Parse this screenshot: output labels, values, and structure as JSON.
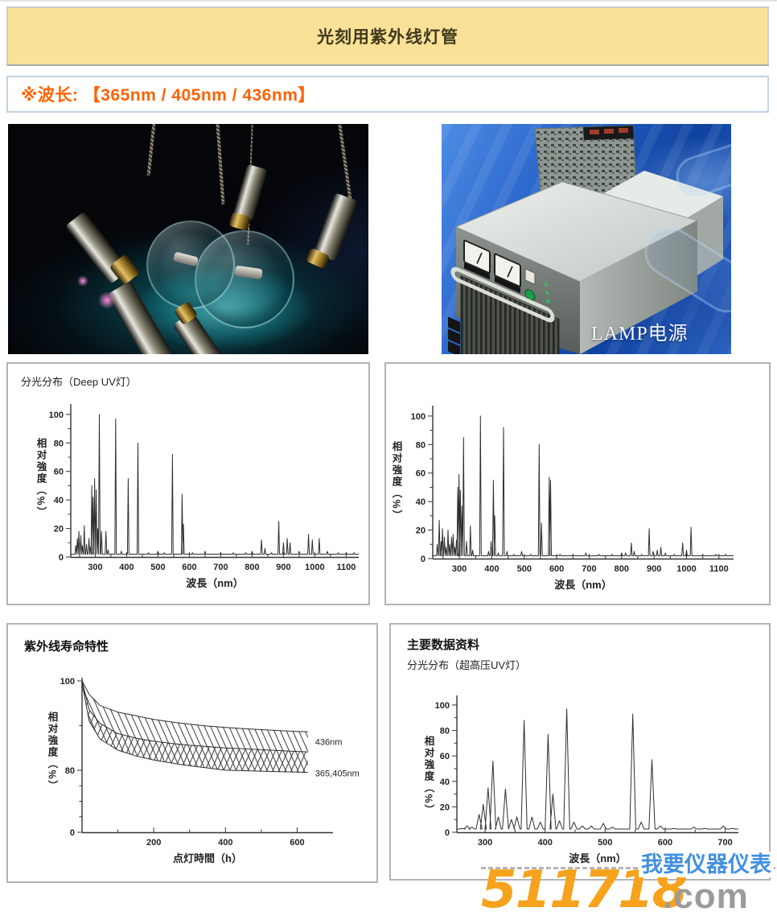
{
  "page": {
    "title": "光刻用紫外线灯管",
    "wavelength_note": "※波长: 【365nm / 405nm / 436nm】"
  },
  "photos": {
    "lamp_photo": "紫外线灯管照片",
    "power_supply_label": "LAMP电源"
  },
  "watermark": {
    "number": "511718",
    "suffix": ".com",
    "tagline": "我要仪器仪表",
    "orange": "#f6a21c",
    "gray": "#9b9b9b",
    "blue": "#4190e0"
  },
  "chart_data": [
    {
      "type": "line",
      "title": "分光分布（Deep UV灯）",
      "xlabel": "波長（nm）",
      "ylabel": "相对強度（%）",
      "xlim": [
        222,
        1140
      ],
      "ylim": [
        0,
        105
      ],
      "xticks": [
        300,
        400,
        500,
        600,
        700,
        800,
        900,
        1000,
        1100
      ],
      "xticks_minor": [
        250,
        350,
        450,
        550,
        650,
        750,
        850,
        950,
        1050
      ],
      "yticks": [
        0,
        20,
        40,
        60,
        80,
        100
      ],
      "yticks_minor": [
        10,
        30,
        50,
        70,
        90
      ],
      "baseline": 2,
      "peak_width": 5,
      "peaks_nm_intensity": [
        [
          238,
          8
        ],
        [
          243,
          13
        ],
        [
          248,
          18
        ],
        [
          254,
          15
        ],
        [
          259,
          8
        ],
        [
          265,
          22
        ],
        [
          272,
          9
        ],
        [
          280,
          13
        ],
        [
          285,
          7
        ],
        [
          289,
          50
        ],
        [
          293,
          42
        ],
        [
          298,
          55
        ],
        [
          303,
          47
        ],
        [
          308,
          20
        ],
        [
          313,
          100
        ],
        [
          320,
          18
        ],
        [
          334,
          18
        ],
        [
          341,
          5
        ],
        [
          365,
          97
        ],
        [
          383,
          4
        ],
        [
          405,
          55
        ],
        [
          436,
          80
        ],
        [
          470,
          3
        ],
        [
          500,
          4
        ],
        [
          520,
          3
        ],
        [
          546,
          72
        ],
        [
          577,
          44
        ],
        [
          581,
          23
        ],
        [
          610,
          3
        ],
        [
          650,
          4
        ],
        [
          700,
          3
        ],
        [
          740,
          3
        ],
        [
          780,
          3
        ],
        [
          800,
          4
        ],
        [
          830,
          12
        ],
        [
          841,
          6
        ],
        [
          862,
          3
        ],
        [
          885,
          25
        ],
        [
          900,
          10
        ],
        [
          912,
          13
        ],
        [
          921,
          10
        ],
        [
          950,
          4
        ],
        [
          980,
          16
        ],
        [
          992,
          12
        ],
        [
          1014,
          13
        ],
        [
          1040,
          4
        ],
        [
          1075,
          3
        ],
        [
          1100,
          3
        ],
        [
          1125,
          3
        ]
      ]
    },
    {
      "type": "line",
      "title": "",
      "xlabel": "波長（nm）",
      "ylabel": "相对強度（%）",
      "xlim": [
        218,
        1145
      ],
      "ylim": [
        0,
        105
      ],
      "xticks": [
        300,
        400,
        500,
        600,
        700,
        800,
        900,
        1000,
        1100
      ],
      "xticks_minor": [
        250,
        350,
        450,
        550,
        650,
        750,
        850,
        950,
        1050
      ],
      "yticks": [
        0,
        20,
        40,
        60,
        80,
        100
      ],
      "yticks_minor": [
        10,
        30,
        50,
        70,
        90
      ],
      "baseline": 2,
      "peak_width": 5,
      "peaks_nm_intensity": [
        [
          232,
          10
        ],
        [
          238,
          27
        ],
        [
          244,
          12
        ],
        [
          248,
          21
        ],
        [
          254,
          15
        ],
        [
          259,
          8
        ],
        [
          265,
          20
        ],
        [
          270,
          10
        ],
        [
          276,
          15
        ],
        [
          281,
          17
        ],
        [
          286,
          8
        ],
        [
          291,
          13
        ],
        [
          295,
          50
        ],
        [
          299,
          59
        ],
        [
          303,
          48
        ],
        [
          308,
          37
        ],
        [
          313,
          85
        ],
        [
          322,
          12
        ],
        [
          334,
          23
        ],
        [
          341,
          6
        ],
        [
          365,
          100
        ],
        [
          390,
          5
        ],
        [
          398,
          12
        ],
        [
          405,
          55
        ],
        [
          409,
          30
        ],
        [
          420,
          4
        ],
        [
          436,
          92
        ],
        [
          447,
          5
        ],
        [
          468,
          3
        ],
        [
          492,
          5
        ],
        [
          520,
          3
        ],
        [
          546,
          80
        ],
        [
          553,
          25
        ],
        [
          577,
          57
        ],
        [
          581,
          55
        ],
        [
          610,
          3
        ],
        [
          650,
          3
        ],
        [
          690,
          4
        ],
        [
          730,
          3
        ],
        [
          770,
          3
        ],
        [
          800,
          4
        ],
        [
          812,
          4
        ],
        [
          830,
          11
        ],
        [
          839,
          5
        ],
        [
          862,
          3
        ],
        [
          885,
          21
        ],
        [
          897,
          5
        ],
        [
          910,
          6
        ],
        [
          921,
          8
        ],
        [
          935,
          4
        ],
        [
          962,
          3
        ],
        [
          988,
          11
        ],
        [
          1000,
          6
        ],
        [
          1014,
          22
        ],
        [
          1050,
          3
        ],
        [
          1090,
          3
        ],
        [
          1120,
          3
        ]
      ]
    },
    {
      "type": "band",
      "title": "紫外线寿命特性",
      "xlabel": "点灯時間（h）",
      "ylabel": "相对強度（%）",
      "xlim": [
        0,
        700
      ],
      "xticks": [
        200,
        400,
        600
      ],
      "xticks_minor": [
        100,
        300,
        500
      ],
      "yticks": [
        100,
        80,
        0
      ],
      "yticks_minor": [
        90,
        60,
        40,
        20
      ],
      "y_compression": [
        [
          100,
          0
        ],
        [
          80,
          0.59
        ],
        [
          0,
          1
        ]
      ],
      "x": [
        0,
        20,
        50,
        100,
        150,
        200,
        250,
        300,
        350,
        400,
        450,
        500,
        550,
        600,
        630
      ],
      "series": [
        {
          "name": "436nm band upper",
          "y": [
            100,
            97,
            94.5,
            93,
            92.2,
            91.4,
            90.8,
            90.3,
            89.9,
            89.6,
            89.3,
            89.1,
            88.9,
            88.7,
            88.6
          ]
        },
        {
          "name": "band divider",
          "y": [
            100,
            93.5,
            90.5,
            88.2,
            87.2,
            86.5,
            86,
            85.6,
            85.3,
            85,
            84.8,
            84.6,
            84.4,
            84.2,
            84.1
          ]
        },
        {
          "name": "365,405nm band lower",
          "y": [
            99.5,
            91,
            87,
            84.5,
            83.2,
            82.3,
            81.6,
            81,
            80.5,
            80,
            79.4,
            78.8,
            78.2,
            77.6,
            77.2
          ]
        }
      ],
      "right_labels": [
        {
          "text": "436nm",
          "at": 86.4
        },
        {
          "text": "365,405nm",
          "at": 76.3
        }
      ]
    },
    {
      "type": "line",
      "panel_title": "主要数据资料",
      "title": "分光分布（超高压UV灯）",
      "xlabel": "波長（nm）",
      "ylabel": "相对強度（%）",
      "xlim": [
        253,
        722
      ],
      "ylim": [
        0,
        105
      ],
      "xticks": [
        300,
        400,
        500,
        600,
        700
      ],
      "xticks_minor": [
        350,
        450,
        550,
        650
      ],
      "yticks": [
        0,
        20,
        40,
        60,
        80,
        100
      ],
      "yticks_minor": [
        10,
        30,
        50,
        70,
        90
      ],
      "baseline": 2.5,
      "peak_width": 10,
      "peaks_nm_intensity": [
        [
          262,
          3
        ],
        [
          270,
          5
        ],
        [
          278,
          4
        ],
        [
          290,
          14
        ],
        [
          297,
          22
        ],
        [
          305,
          35
        ],
        [
          313,
          56
        ],
        [
          322,
          12
        ],
        [
          334,
          34
        ],
        [
          344,
          10
        ],
        [
          353,
          12
        ],
        [
          365,
          88
        ],
        [
          378,
          12
        ],
        [
          392,
          8
        ],
        [
          405,
          77
        ],
        [
          413,
          30
        ],
        [
          424,
          9
        ],
        [
          436,
          97
        ],
        [
          448,
          8
        ],
        [
          462,
          5
        ],
        [
          477,
          5
        ],
        [
          497,
          7
        ],
        [
          512,
          4
        ],
        [
          546,
          93
        ],
        [
          560,
          8
        ],
        [
          578,
          57
        ],
        [
          592,
          5
        ],
        [
          615,
          3
        ],
        [
          648,
          4
        ],
        [
          666,
          3
        ],
        [
          697,
          5
        ],
        [
          712,
          3
        ]
      ]
    }
  ]
}
